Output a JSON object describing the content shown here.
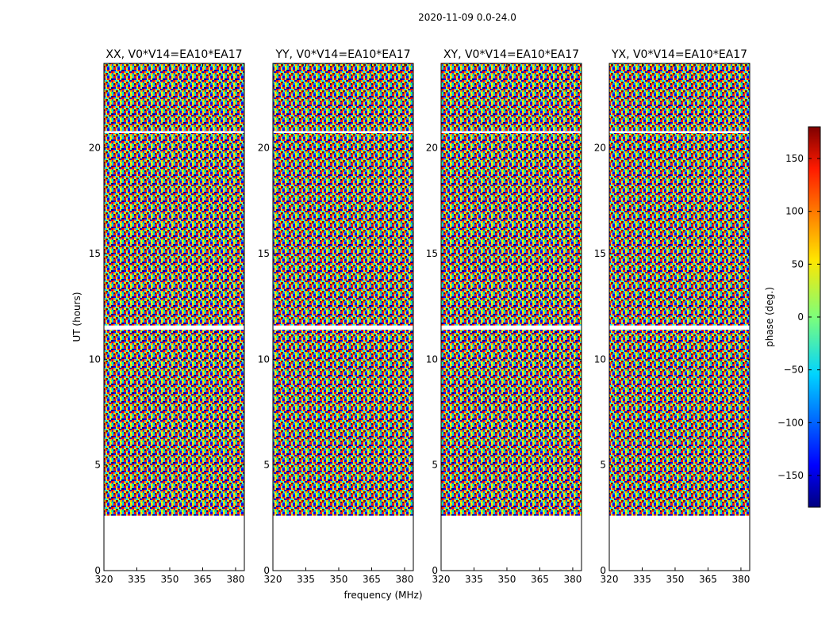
{
  "chart_data": {
    "type": "heatmap",
    "suptitle": "2020-11-09 0.0-24.0",
    "xlabel": "frequency (MHz)",
    "ylabel": "UT (hours)",
    "xlim": [
      320,
      384
    ],
    "ylim": [
      0,
      24
    ],
    "xticks": [
      "320",
      "335",
      "350",
      "365",
      "380"
    ],
    "yticks": [
      "0",
      "5",
      "10",
      "15",
      "20"
    ],
    "panels": [
      {
        "title": "XX, V0*V14=EA10*EA17"
      },
      {
        "title": "YY, V0*V14=EA10*EA17"
      },
      {
        "title": "XY, V0*V14=EA10*EA17"
      },
      {
        "title": "YX, V0*V14=EA10*EA17"
      }
    ],
    "data_time_ranges_hours": [
      [
        2.6,
        11.4
      ],
      [
        11.6,
        20.7
      ],
      [
        20.8,
        24.0
      ]
    ],
    "colorbar": {
      "label": "phase (deg.)",
      "range": [
        -180,
        180
      ],
      "ticks": [
        "150",
        "100",
        "50",
        "0",
        "−50",
        "−100",
        "−150"
      ],
      "tick_values": [
        150,
        100,
        50,
        0,
        -50,
        -100,
        -150
      ],
      "colormap": "jet"
    }
  }
}
